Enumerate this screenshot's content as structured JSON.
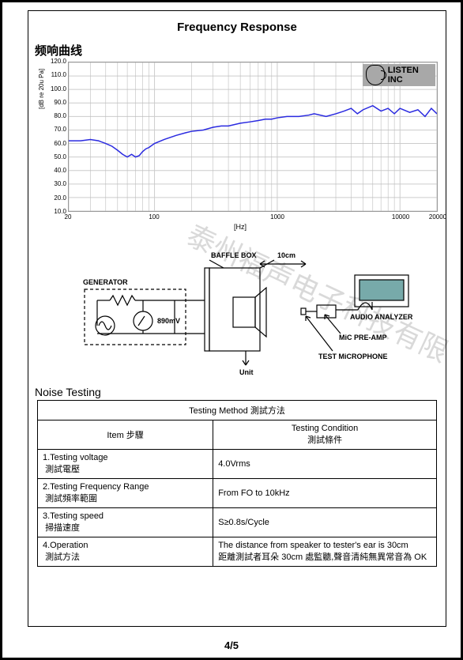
{
  "header": {
    "title": "Frequency   Response"
  },
  "subtitle": "频响曲线",
  "watermark": "泰州福声电子科技有限",
  "chart": {
    "type": "line",
    "background_color": "#ffffff",
    "grid_color": "#cccccc",
    "line_color": "#2a2ae0",
    "line_width": 1.5,
    "xscale": "log",
    "xlim": [
      20,
      20000
    ],
    "ylim": [
      10,
      120
    ],
    "ytick_positions": [
      10,
      20,
      30,
      40,
      50,
      60,
      70,
      80,
      90,
      100,
      110,
      120
    ],
    "ytick_labels": [
      "10.0",
      "20.0",
      "30.0",
      "40.0",
      "50.0",
      "60.0",
      "70.0",
      "80.0",
      "90.0",
      "100.0",
      "110.0",
      "120.0"
    ],
    "xtick_positions": [
      20,
      100,
      1000,
      10000,
      20000
    ],
    "xtick_labels": [
      "20",
      "100",
      "1000",
      "10000",
      "20000"
    ],
    "xlabel": "[Hz]",
    "ylabel": "[dB re 20u Pa]",
    "dense_x": [
      30,
      40,
      50,
      60,
      70,
      80,
      90,
      200,
      300,
      400,
      500,
      600,
      700,
      800,
      900,
      2000,
      3000,
      4000,
      5000,
      6000,
      7000,
      8000,
      9000
    ],
    "logo_text": "LISTEN INC",
    "data": [
      [
        20,
        62
      ],
      [
        25,
        62
      ],
      [
        30,
        63
      ],
      [
        35,
        62
      ],
      [
        40,
        60
      ],
      [
        45,
        58
      ],
      [
        50,
        55
      ],
      [
        55,
        52
      ],
      [
        60,
        50
      ],
      [
        65,
        52
      ],
      [
        70,
        50
      ],
      [
        75,
        51
      ],
      [
        80,
        54
      ],
      [
        85,
        56
      ],
      [
        90,
        57
      ],
      [
        100,
        60
      ],
      [
        120,
        63
      ],
      [
        150,
        66
      ],
      [
        180,
        68
      ],
      [
        200,
        69
      ],
      [
        250,
        70
      ],
      [
        300,
        72
      ],
      [
        350,
        73
      ],
      [
        400,
        73
      ],
      [
        500,
        75
      ],
      [
        600,
        76
      ],
      [
        700,
        77
      ],
      [
        800,
        78
      ],
      [
        900,
        78
      ],
      [
        1000,
        79
      ],
      [
        1200,
        80
      ],
      [
        1500,
        80
      ],
      [
        1800,
        81
      ],
      [
        2000,
        82
      ],
      [
        2500,
        80
      ],
      [
        3000,
        82
      ],
      [
        3500,
        84
      ],
      [
        4000,
        86
      ],
      [
        4500,
        82
      ],
      [
        5000,
        85
      ],
      [
        6000,
        88
      ],
      [
        7000,
        84
      ],
      [
        8000,
        86
      ],
      [
        9000,
        82
      ],
      [
        10000,
        86
      ],
      [
        12000,
        83
      ],
      [
        14000,
        85
      ],
      [
        16000,
        80
      ],
      [
        18000,
        86
      ],
      [
        20000,
        82
      ]
    ]
  },
  "diagram": {
    "labels": {
      "baffle": "BAFFLE BOX",
      "distance": "10cm",
      "generator": "GENERATOR",
      "voltage": "890mV",
      "unit": "Unit",
      "analyzer": "AUDIO ANALYZER",
      "preamp": "MiC PRE-AMP",
      "mic": "TEST MiCROPHONE"
    },
    "stroke": "#000000",
    "stroke_width": 1.2
  },
  "noise": {
    "section_title": "Noise  Testing",
    "head_merged": "Testing Method 測試方法",
    "col1": "Item 步驟",
    "col2_line1": "Testing Condition",
    "col2_line2": "測試條件",
    "rows": [
      {
        "item_en": "1.Testing  voltage",
        "item_cn": "測試電壓",
        "val": "4.0Vrms"
      },
      {
        "item_en": "2.Testing Frequency Range",
        "item_cn": "測試頻率範圍",
        "val": "From FO to 10kHz"
      },
      {
        "item_en": "3.Testing speed",
        "item_cn": "掃描速度",
        "val": "S≥0.8s/Cycle"
      },
      {
        "item_en": "4.Operation",
        "item_cn": "測試方法",
        "val_en": "The distance from speaker to tester's ear is 30cm",
        "val_cn": "距離測試者耳朵 30cm 處監聽,聲音清純無異常音為 OK"
      }
    ]
  },
  "pageno": "4/5"
}
